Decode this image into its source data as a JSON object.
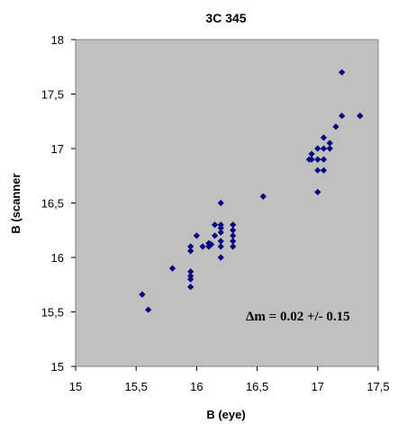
{
  "chart_data": {
    "type": "scatter",
    "title": "3C 345",
    "xlabel": "B (eye)",
    "ylabel": "B (scanner",
    "xlim": [
      15,
      17.5
    ],
    "ylim": [
      15,
      18
    ],
    "x_ticks": [
      "15",
      "15,5",
      "16",
      "16,5",
      "17",
      "17,5"
    ],
    "y_ticks": [
      "15",
      "15,5",
      "16",
      "16,5",
      "17",
      "17,5",
      "18"
    ],
    "grid": false,
    "legend": "none",
    "annotation": "Δm = 0.02 +/- 0.15",
    "colors": {
      "plot_area": "#c0c0c0",
      "marker": "#000080",
      "frame": "#808080"
    },
    "series": [
      {
        "points": [
          [
            15.55,
            15.66
          ],
          [
            15.6,
            15.52
          ],
          [
            15.8,
            15.9
          ],
          [
            15.95,
            16.1
          ],
          [
            15.95,
            16.06
          ],
          [
            15.95,
            15.87
          ],
          [
            15.95,
            15.83
          ],
          [
            15.95,
            15.8
          ],
          [
            15.95,
            15.73
          ],
          [
            16.0,
            16.2
          ],
          [
            16.05,
            16.1
          ],
          [
            16.1,
            16.13
          ],
          [
            16.1,
            16.1
          ],
          [
            16.12,
            16.12
          ],
          [
            16.15,
            16.3
          ],
          [
            16.15,
            16.2
          ],
          [
            16.2,
            16.5
          ],
          [
            16.2,
            16.3
          ],
          [
            16.2,
            16.27
          ],
          [
            16.2,
            16.23
          ],
          [
            16.2,
            16.15
          ],
          [
            16.2,
            16.1
          ],
          [
            16.2,
            16.0
          ],
          [
            16.3,
            16.3
          ],
          [
            16.3,
            16.25
          ],
          [
            16.3,
            16.2
          ],
          [
            16.3,
            16.15
          ],
          [
            16.3,
            16.1
          ],
          [
            16.55,
            16.56
          ],
          [
            16.93,
            16.9
          ],
          [
            16.95,
            16.95
          ],
          [
            16.95,
            16.9
          ],
          [
            17.0,
            17.0
          ],
          [
            17.0,
            16.9
          ],
          [
            17.0,
            16.8
          ],
          [
            17.0,
            16.6
          ],
          [
            17.05,
            17.1
          ],
          [
            17.05,
            17.0
          ],
          [
            17.05,
            16.9
          ],
          [
            17.05,
            16.8
          ],
          [
            17.1,
            17.05
          ],
          [
            17.1,
            17.0
          ],
          [
            17.15,
            17.2
          ],
          [
            17.2,
            17.7
          ],
          [
            17.2,
            17.3
          ],
          [
            17.35,
            17.3
          ],
          [
            17.35,
            17.3
          ]
        ]
      }
    ]
  }
}
